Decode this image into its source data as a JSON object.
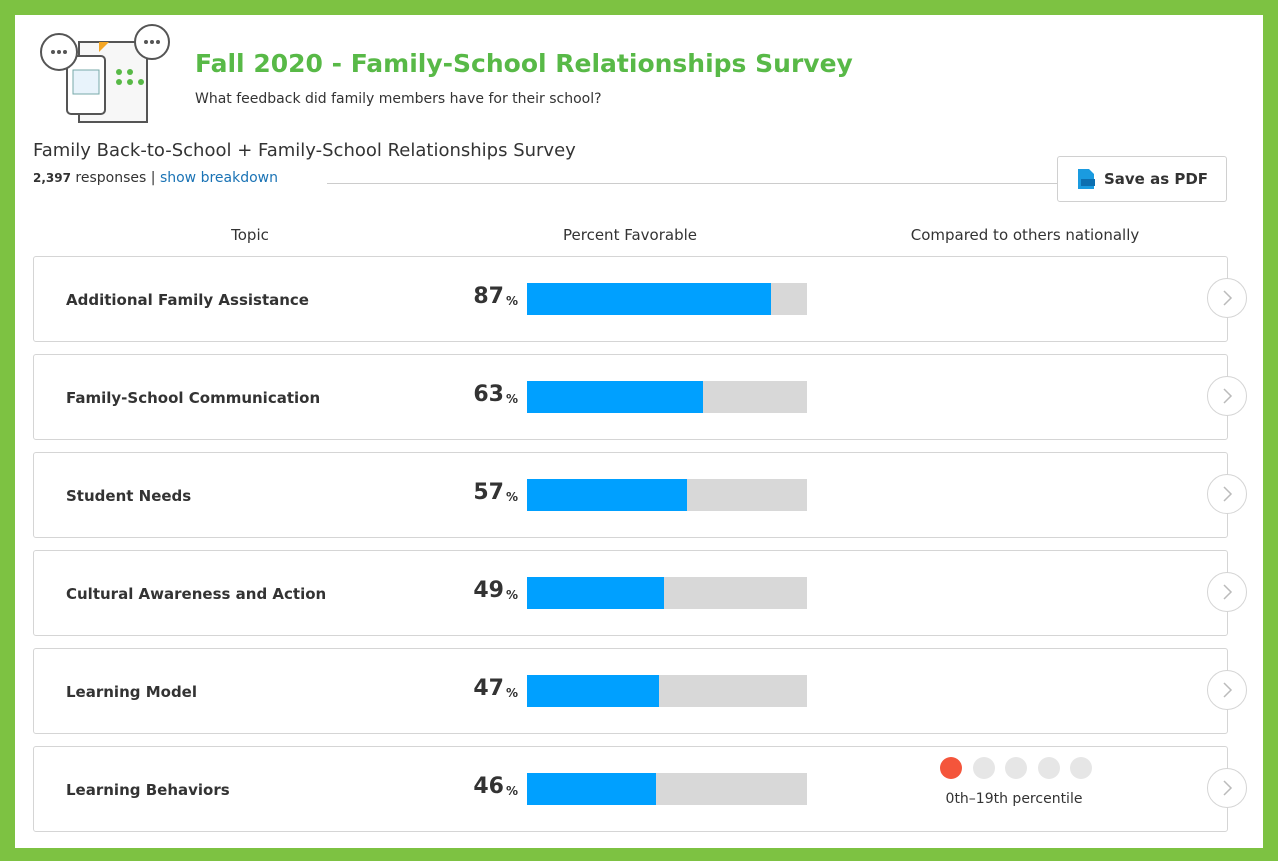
{
  "header": {
    "title": "Fall 2020 - Family-School Relationships Survey",
    "subtitle": "What feedback did family members have for their school?"
  },
  "survey": {
    "name": "Family Back-to-School + Family-School Relationships Survey",
    "response_count": "2,397",
    "responses_label": "responses",
    "separator": "|",
    "breakdown_link": "show breakdown",
    "pdf_button": "Save as PDF"
  },
  "table": {
    "columns": [
      "Topic",
      "Percent Favorable",
      "Compared to others nationally"
    ],
    "unit": "%",
    "bar_color": "#00a0ff",
    "track_color": "#d8d8d8",
    "rows": [
      {
        "topic": "Additional Family Assistance",
        "percent": 87
      },
      {
        "topic": "Family-School Communication",
        "percent": 63
      },
      {
        "topic": "Student Needs",
        "percent": 57
      },
      {
        "topic": "Cultural Awareness and Action",
        "percent": 49
      },
      {
        "topic": "Learning Model",
        "percent": 47
      },
      {
        "topic": "Learning Behaviors",
        "percent": 46,
        "comparison": {
          "dots": 5,
          "active": 0,
          "active_color": "#f4553b",
          "label": "0th–19th percentile"
        }
      }
    ]
  }
}
